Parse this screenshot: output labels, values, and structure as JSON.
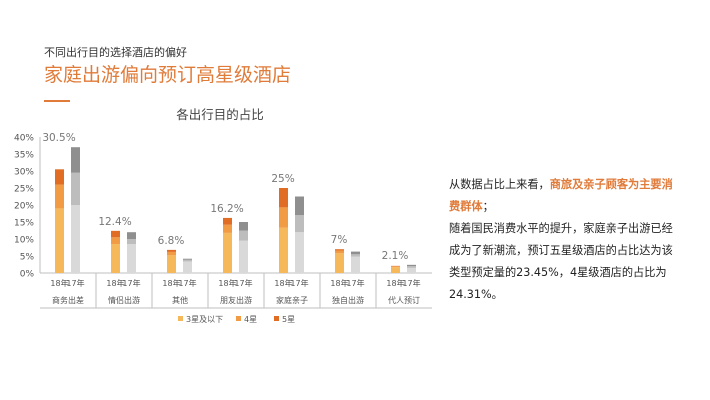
{
  "header": {
    "subtitle": "不同出行目的选择酒店的偏好",
    "title": "家庭出游偏向预订高星级酒店"
  },
  "side_text": {
    "p1_prefix": "从数据占比上来看，",
    "p1_highlight": "商旅及亲子顾客为主要消费群体",
    "p1_suffix": "；",
    "p2": "随着国民消费水平的提升，家庭亲子出游已经成为了新潮流，预订五星级酒店的占比达为该类型预定量的23.45%，4星级酒店的占比为24.31%。"
  },
  "colors": {
    "accent": "#e07b39",
    "s18": [
      "#f5b85a",
      "#f19b45",
      "#e16d24"
    ],
    "s17": [
      "#d9d9d9",
      "#bdbdbd",
      "#8f8f8f"
    ],
    "axis": "#bfbfbf"
  },
  "chart_data": {
    "type": "bar",
    "title": "各出行目的占比",
    "ylim": [
      0,
      40
    ],
    "yticks": [
      "0%",
      "5%",
      "10%",
      "15%",
      "20%",
      "25%",
      "30%",
      "35%",
      "40%"
    ],
    "year_labels": [
      "18年",
      "17年"
    ],
    "categories": [
      "商务出差",
      "情侣出游",
      "其他",
      "朋友出游",
      "家庭亲子",
      "独自出游",
      "代人预订"
    ],
    "totals_label": [
      "30.5%",
      "12.4%",
      "6.8%",
      "16.2%",
      "25%",
      "7%",
      "2.1%"
    ],
    "series_names": [
      "3星及以下",
      "4星",
      "5星"
    ],
    "legend_position": "bottom",
    "data_18": [
      [
        19,
        7,
        4.5
      ],
      [
        8.5,
        2,
        1.9
      ],
      [
        5.2,
        1,
        0.6
      ],
      [
        11.8,
        2.4,
        2.0
      ],
      [
        13.3,
        6,
        5.7
      ],
      [
        5.8,
        0.8,
        0.4
      ],
      [
        1.7,
        0.3,
        0.1
      ]
    ],
    "data_17": [
      [
        20,
        9.5,
        7.5
      ],
      [
        8.5,
        1.5,
        2
      ],
      [
        3.4,
        0.5,
        0.3
      ],
      [
        9.5,
        3,
        2.5
      ],
      [
        12,
        5,
        5.5
      ],
      [
        4.8,
        0.7,
        0.8
      ],
      [
        1.5,
        0.5,
        0.4
      ]
    ]
  }
}
